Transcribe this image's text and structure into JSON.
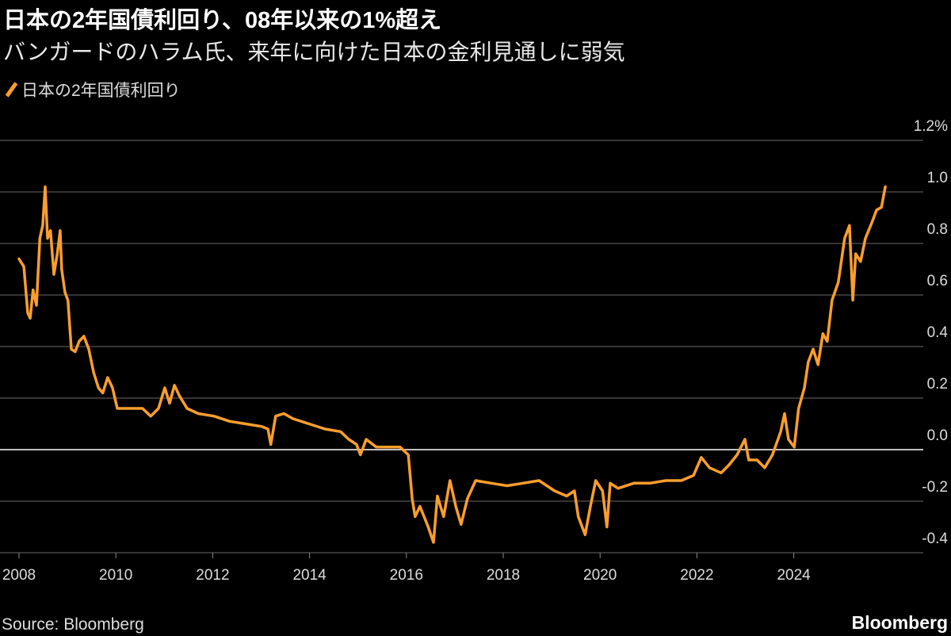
{
  "header": {
    "title": "日本の2年国債利回り、08年以来の1%超え",
    "subtitle": "バンガードのハラム氏、来年に向けた日本の金利見通しに弱気"
  },
  "footer": {
    "source": "Source: Bloomberg",
    "brand": "Bloomberg"
  },
  "colors": {
    "series": "#fb9e2d",
    "grid": "#555555",
    "zero": "#ffffff",
    "background": "#000000"
  },
  "chart_data": {
    "type": "line",
    "title": "日本の2年国債利回り、08年以来の1%超え",
    "subtitle": "バンガードのハラム氏、来年に向けた日本の金利見通しに弱気",
    "xlabel": "",
    "ylabel": "",
    "ylim": [
      -0.4,
      1.2
    ],
    "xlim": [
      2007.61,
      2026.67
    ],
    "grid": true,
    "legend_position": "top-left",
    "x_ticks": [
      "2008",
      "2010",
      "2012",
      "2014",
      "2016",
      "2018",
      "2020",
      "2022",
      "2024"
    ],
    "y_ticks": [
      "1.2%",
      "1.0",
      "0.8",
      "0.6",
      "0.4",
      "0.2",
      "0.0",
      "-0.2",
      "-0.4"
    ],
    "y_tick_values": [
      1.2,
      1.0,
      0.8,
      0.6,
      0.4,
      0.2,
      0.0,
      -0.2,
      -0.4
    ],
    "series": [
      {
        "name": "日本の2年国債利回り",
        "points": [
          [
            2008.0,
            0.74
          ],
          [
            2008.1,
            0.71
          ],
          [
            2008.18,
            0.53
          ],
          [
            2008.23,
            0.51
          ],
          [
            2008.29,
            0.62
          ],
          [
            2008.36,
            0.56
          ],
          [
            2008.43,
            0.82
          ],
          [
            2008.49,
            0.87
          ],
          [
            2008.54,
            1.02
          ],
          [
            2008.59,
            0.82
          ],
          [
            2008.65,
            0.85
          ],
          [
            2008.72,
            0.68
          ],
          [
            2008.79,
            0.76
          ],
          [
            2008.85,
            0.85
          ],
          [
            2008.88,
            0.7
          ],
          [
            2008.95,
            0.61
          ],
          [
            2009.01,
            0.58
          ],
          [
            2009.08,
            0.39
          ],
          [
            2009.16,
            0.38
          ],
          [
            2009.24,
            0.42
          ],
          [
            2009.34,
            0.44
          ],
          [
            2009.44,
            0.39
          ],
          [
            2009.54,
            0.3
          ],
          [
            2009.64,
            0.24
          ],
          [
            2009.73,
            0.22
          ],
          [
            2009.83,
            0.28
          ],
          [
            2009.93,
            0.24
          ],
          [
            2010.03,
            0.16
          ],
          [
            2010.23,
            0.16
          ],
          [
            2010.39,
            0.16
          ],
          [
            2010.55,
            0.16
          ],
          [
            2010.72,
            0.13
          ],
          [
            2010.88,
            0.16
          ],
          [
            2011.01,
            0.24
          ],
          [
            2011.11,
            0.18
          ],
          [
            2011.21,
            0.25
          ],
          [
            2011.31,
            0.21
          ],
          [
            2011.47,
            0.16
          ],
          [
            2011.7,
            0.14
          ],
          [
            2012.03,
            0.13
          ],
          [
            2012.35,
            0.11
          ],
          [
            2012.68,
            0.1
          ],
          [
            2013.01,
            0.09
          ],
          [
            2013.14,
            0.08
          ],
          [
            2013.2,
            0.02
          ],
          [
            2013.3,
            0.13
          ],
          [
            2013.47,
            0.14
          ],
          [
            2013.66,
            0.12
          ],
          [
            2013.99,
            0.1
          ],
          [
            2014.32,
            0.08
          ],
          [
            2014.64,
            0.07
          ],
          [
            2014.81,
            0.04
          ],
          [
            2014.97,
            0.02
          ],
          [
            2015.05,
            -0.02
          ],
          [
            2015.17,
            0.04
          ],
          [
            2015.38,
            0.01
          ],
          [
            2015.63,
            0.01
          ],
          [
            2015.87,
            0.01
          ],
          [
            2016.04,
            -0.02
          ],
          [
            2016.12,
            -0.19
          ],
          [
            2016.18,
            -0.26
          ],
          [
            2016.28,
            -0.22
          ],
          [
            2016.45,
            -0.3
          ],
          [
            2016.56,
            -0.36
          ],
          [
            2016.64,
            -0.18
          ],
          [
            2016.77,
            -0.26
          ],
          [
            2016.9,
            -0.12
          ],
          [
            2017.02,
            -0.22
          ],
          [
            2017.13,
            -0.29
          ],
          [
            2017.26,
            -0.19
          ],
          [
            2017.43,
            -0.12
          ],
          [
            2017.75,
            -0.13
          ],
          [
            2018.08,
            -0.14
          ],
          [
            2018.41,
            -0.13
          ],
          [
            2018.74,
            -0.12
          ],
          [
            2019.06,
            -0.16
          ],
          [
            2019.31,
            -0.18
          ],
          [
            2019.47,
            -0.16
          ],
          [
            2019.55,
            -0.26
          ],
          [
            2019.69,
            -0.33
          ],
          [
            2019.8,
            -0.22
          ],
          [
            2019.91,
            -0.12
          ],
          [
            2020.05,
            -0.16
          ],
          [
            2020.14,
            -0.3
          ],
          [
            2020.21,
            -0.13
          ],
          [
            2020.37,
            -0.15
          ],
          [
            2020.7,
            -0.13
          ],
          [
            2021.03,
            -0.13
          ],
          [
            2021.36,
            -0.12
          ],
          [
            2021.68,
            -0.12
          ],
          [
            2021.93,
            -0.1
          ],
          [
            2022.09,
            -0.03
          ],
          [
            2022.26,
            -0.07
          ],
          [
            2022.5,
            -0.09
          ],
          [
            2022.66,
            -0.06
          ],
          [
            2022.83,
            -0.02
          ],
          [
            2022.99,
            0.04
          ],
          [
            2023.07,
            -0.04
          ],
          [
            2023.24,
            -0.04
          ],
          [
            2023.4,
            -0.07
          ],
          [
            2023.56,
            -0.02
          ],
          [
            2023.73,
            0.07
          ],
          [
            2023.81,
            0.14
          ],
          [
            2023.89,
            0.04
          ],
          [
            2024.01,
            0.01
          ],
          [
            2024.1,
            0.16
          ],
          [
            2024.22,
            0.24
          ],
          [
            2024.3,
            0.34
          ],
          [
            2024.4,
            0.39
          ],
          [
            2024.5,
            0.33
          ],
          [
            2024.6,
            0.45
          ],
          [
            2024.69,
            0.42
          ],
          [
            2024.79,
            0.58
          ],
          [
            2024.92,
            0.65
          ],
          [
            2025.05,
            0.82
          ],
          [
            2025.15,
            0.87
          ],
          [
            2025.22,
            0.58
          ],
          [
            2025.28,
            0.76
          ],
          [
            2025.38,
            0.73
          ],
          [
            2025.48,
            0.82
          ],
          [
            2025.61,
            0.88
          ],
          [
            2025.71,
            0.93
          ],
          [
            2025.81,
            0.94
          ],
          [
            2025.89,
            1.02
          ]
        ]
      }
    ]
  }
}
